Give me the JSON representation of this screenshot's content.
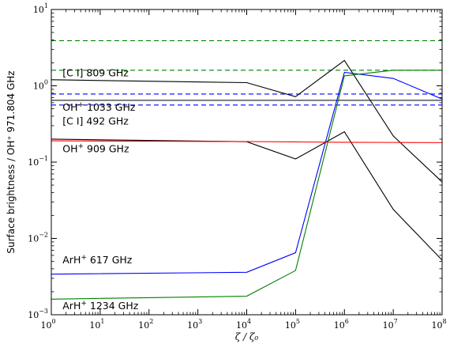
{
  "chart_data": {
    "type": "line",
    "title": "",
    "xlabel": "ζ / ζ₀",
    "ylabel": "Surface brightness / OH⁺ 971.804 GHz",
    "xscale": "log",
    "yscale": "log",
    "xlim": [
      1,
      100000000
    ],
    "ylim": [
      0.001,
      10
    ],
    "x": [
      1,
      10000,
      100000,
      1000000,
      10000000,
      100000000
    ],
    "xticks": [
      {
        "value": 1,
        "mant": "10",
        "exp": "0"
      },
      {
        "value": 10,
        "mant": "10",
        "exp": "1"
      },
      {
        "value": 100,
        "mant": "10",
        "exp": "2"
      },
      {
        "value": 1000,
        "mant": "10",
        "exp": "3"
      },
      {
        "value": 10000,
        "mant": "10",
        "exp": "4"
      },
      {
        "value": 100000,
        "mant": "10",
        "exp": "5"
      },
      {
        "value": 1000000,
        "mant": "10",
        "exp": "6"
      },
      {
        "value": 10000000,
        "mant": "10",
        "exp": "7"
      },
      {
        "value": 100000000,
        "mant": "10",
        "exp": "8"
      }
    ],
    "yticks": [
      {
        "value": 0.001,
        "mant": "10",
        "exp": "−3"
      },
      {
        "value": 0.01,
        "mant": "10",
        "exp": "−2"
      },
      {
        "value": 0.1,
        "mant": "10",
        "exp": "−1"
      },
      {
        "value": 1,
        "mant": "10",
        "exp": "0"
      },
      {
        "value": 10,
        "mant": "10",
        "exp": "1"
      }
    ],
    "series": [
      {
        "color": "#000000",
        "style": "solid",
        "values": [
          1.2,
          1.1,
          0.72,
          2.15,
          0.22,
          0.055
        ]
      },
      {
        "color": "#000000",
        "style": "solid",
        "values": [
          0.2,
          0.185,
          0.11,
          0.25,
          0.024,
          0.0052
        ]
      },
      {
        "color": "#0000ff",
        "style": "solid",
        "values": [
          0.0034,
          0.0036,
          0.0065,
          1.5,
          1.25,
          0.67
        ]
      },
      {
        "color": "#008000",
        "style": "solid",
        "values": [
          0.0016,
          0.00175,
          0.0038,
          1.35,
          1.6,
          1.6
        ]
      },
      {
        "color": "#ff0000",
        "style": "solid",
        "values": [
          0.19,
          0.186,
          0.184,
          0.182,
          0.181,
          0.18
        ]
      }
    ],
    "hlines": [
      {
        "y": 3.9,
        "color": "#008000",
        "style": "dashed"
      },
      {
        "y": 1.6,
        "color": "#008000",
        "style": "dashed"
      },
      {
        "y": 0.78,
        "color": "#0000ff",
        "style": "dashed"
      },
      {
        "y": 0.56,
        "color": "#0000ff",
        "style": "dashed"
      },
      {
        "y": 0.645,
        "color": "#000000",
        "style": "solid"
      }
    ],
    "annotations": [
      {
        "pre": "[C I] 809 GHz",
        "sup": "",
        "post": "",
        "x": 1.7,
        "y": 1.33
      },
      {
        "pre": "OH",
        "sup": "+",
        "post": " 1033 GHz",
        "x": 1.7,
        "y": 0.47
      },
      {
        "pre": "[C I] 492 GHz",
        "sup": "",
        "post": "",
        "x": 1.7,
        "y": 0.31
      },
      {
        "pre": "OH",
        "sup": "+",
        "post": " 909 GHz",
        "x": 1.7,
        "y": 0.135
      },
      {
        "pre": "ArH",
        "sup": "+",
        "post": " 617 GHz",
        "x": 1.7,
        "y": 0.0047
      },
      {
        "pre": "ArH",
        "sup": "+",
        "post": " 1234 GHz",
        "x": 1.7,
        "y": 0.00118
      }
    ]
  }
}
